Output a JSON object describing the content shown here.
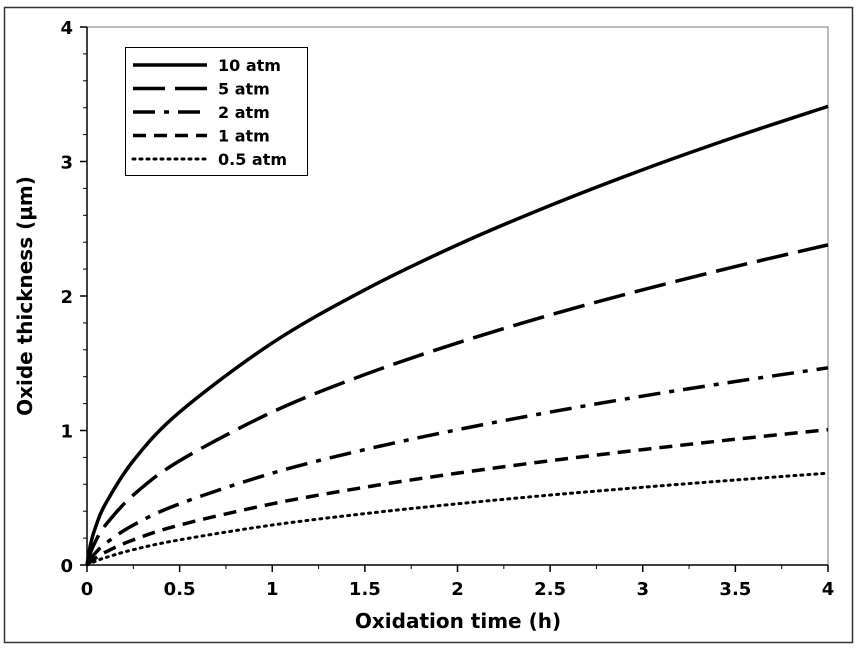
{
  "chart_data": {
    "type": "line",
    "title": "",
    "xlabel": "Oxidation time (h)",
    "ylabel": "Oxide thickness (µm)",
    "xlim": [
      0,
      4
    ],
    "ylim": [
      0,
      4
    ],
    "xticks": [
      "0",
      "0.5",
      "1",
      "1.5",
      "2",
      "2.5",
      "3",
      "3.5",
      "4"
    ],
    "xtick_values": [
      0,
      0.5,
      1,
      1.5,
      2,
      2.5,
      3,
      3.5,
      4
    ],
    "yticks": [
      "0",
      "1",
      "2",
      "3",
      "4"
    ],
    "ytick_values": [
      0,
      1,
      2,
      3,
      4
    ],
    "grid": false,
    "legend_position": "top-left",
    "x": [
      0,
      0.02,
      0.05,
      0.1,
      0.25,
      0.5,
      1,
      1.5,
      2,
      2.5,
      3,
      3.5,
      4
    ],
    "series": [
      {
        "name": "10 atm",
        "style": "solid",
        "values": [
          0,
          0.16,
          0.297,
          0.455,
          0.775,
          1.137,
          1.651,
          2.046,
          2.38,
          2.673,
          2.939,
          3.183,
          3.41
        ]
      },
      {
        "name": "5 atm",
        "style": "long-dash",
        "values": [
          0,
          0.096,
          0.187,
          0.297,
          0.52,
          0.775,
          1.137,
          1.416,
          1.651,
          1.859,
          2.046,
          2.219,
          2.38
        ]
      },
      {
        "name": "2 atm",
        "style": "dash-dot",
        "values": [
          0,
          0.046,
          0.096,
          0.16,
          0.297,
          0.455,
          0.683,
          0.858,
          1.006,
          1.137,
          1.256,
          1.364,
          1.466
        ]
      },
      {
        "name": "1 atm",
        "style": "dash",
        "values": [
          0,
          0.025,
          0.055,
          0.096,
          0.187,
          0.297,
          0.455,
          0.578,
          0.683,
          0.775,
          0.858,
          0.935,
          1.006
        ]
      },
      {
        "name": "0.5 atm",
        "style": "dotted",
        "values": [
          0,
          0.013,
          0.03,
          0.055,
          0.114,
          0.187,
          0.297,
          0.382,
          0.455,
          0.52,
          0.578,
          0.632,
          0.683
        ]
      }
    ]
  }
}
